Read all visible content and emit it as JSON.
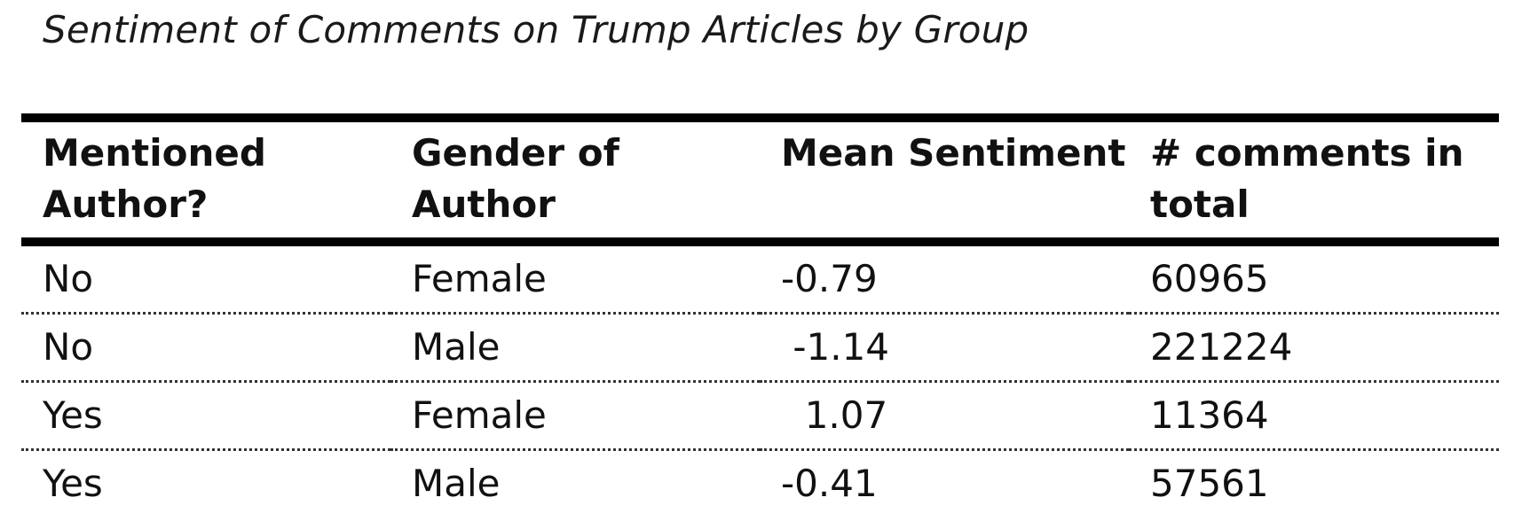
{
  "chart_data": {
    "type": "table",
    "title": "Sentiment of Comments on Trump Articles by Group",
    "columns": [
      "Mentioned Author?",
      "Gender of Author",
      "Mean Sentiment",
      "# comments in total"
    ],
    "rows": [
      [
        "No",
        "Female",
        "-0.79",
        "60965"
      ],
      [
        "No",
        "Male",
        " -1.14",
        "221224"
      ],
      [
        "Yes",
        "Female",
        "  1.07",
        "11364"
      ],
      [
        "Yes",
        "Male",
        "-0.41",
        "57561"
      ]
    ]
  }
}
